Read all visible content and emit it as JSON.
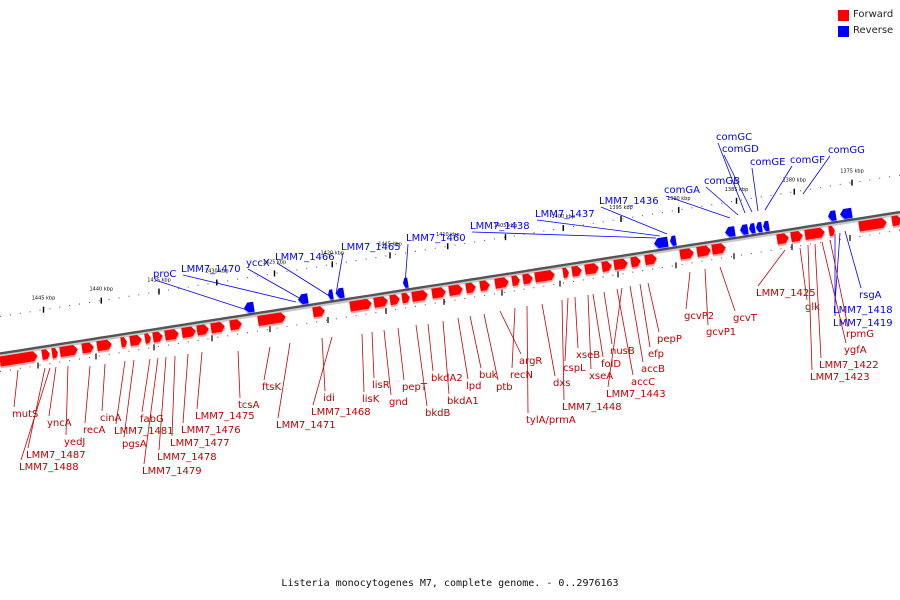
{
  "legend": {
    "forward": {
      "label": "Forward",
      "color": "#ff0000"
    },
    "reverse": {
      "label": "Reverse",
      "color": "#0000ff"
    }
  },
  "caption": "Listeria monocytogenes M7, complete genome. - 0..2976163",
  "scale_unit": "kbp",
  "tick_labels": [
    {
      "kbp": 1375,
      "text": "1375 kbp"
    },
    {
      "kbp": 1380,
      "text": "1380 kbp"
    },
    {
      "kbp": 1385,
      "text": "1385 kbp"
    },
    {
      "kbp": 1390,
      "text": "1390 kbp"
    },
    {
      "kbp": 1395,
      "text": "1395 kbp"
    },
    {
      "kbp": 1400,
      "text": "1400 kbp"
    },
    {
      "kbp": 1405,
      "text": "1405 kbp"
    },
    {
      "kbp": 1410,
      "text": "1410 kbp"
    },
    {
      "kbp": 1415,
      "text": "1415 kbp"
    },
    {
      "kbp": 1420,
      "text": "1420 kbp"
    },
    {
      "kbp": 1425,
      "text": "1425 kbp"
    },
    {
      "kbp": 1430,
      "text": "1430 kbp"
    },
    {
      "kbp": 1435,
      "text": "1435 kbp"
    },
    {
      "kbp": 1440,
      "text": "1440 kbp"
    },
    {
      "kbp": 1445,
      "text": "1445 kbp"
    }
  ],
  "reverse_genes": [
    "comGG",
    "comGF",
    "comGE",
    "comGD",
    "comGC",
    "comGB",
    "comGA",
    "LMM7_1436",
    "LMM7_1437",
    "LMM7_1438",
    "LMM7_1460",
    "LMM7_1465",
    "LMM7_1466",
    "yccX",
    "LMM7_1470",
    "proC",
    "rsgA",
    "LMM7_1418",
    "LMM7_1419"
  ],
  "forward_genes": [
    "mutS",
    "LMM7_1487",
    "LMM7_1488",
    "yncA",
    "yedJ",
    "recA",
    "cinA",
    "LMM7_1481",
    "pgsA",
    "fabG",
    "LMM7_1479",
    "LMM7_1478",
    "LMM7_1477",
    "LMM7_1476",
    "LMM7_1475",
    "tcsA",
    "ftsK",
    "LMM7_1471",
    "idi",
    "LMM7_1468",
    "lisR",
    "lisK",
    "gnd",
    "pepT",
    "bkdB",
    "bkdA2",
    "bkdA1",
    "lpd",
    "buk",
    "ptb",
    "argR",
    "recN",
    "tylA/prmA",
    "dxs",
    "LMM7_1448",
    "cspL",
    "xseB",
    "xseA",
    "folD",
    "nusB",
    "accC",
    "LMM7_1443",
    "accB",
    "efp",
    "pepP",
    "gcvP2",
    "gcvP1",
    "gcvT",
    "LMM7_1425",
    "glk",
    "LMM7_1423",
    "LMM7_1422",
    "ygfA",
    "rpmG"
  ]
}
